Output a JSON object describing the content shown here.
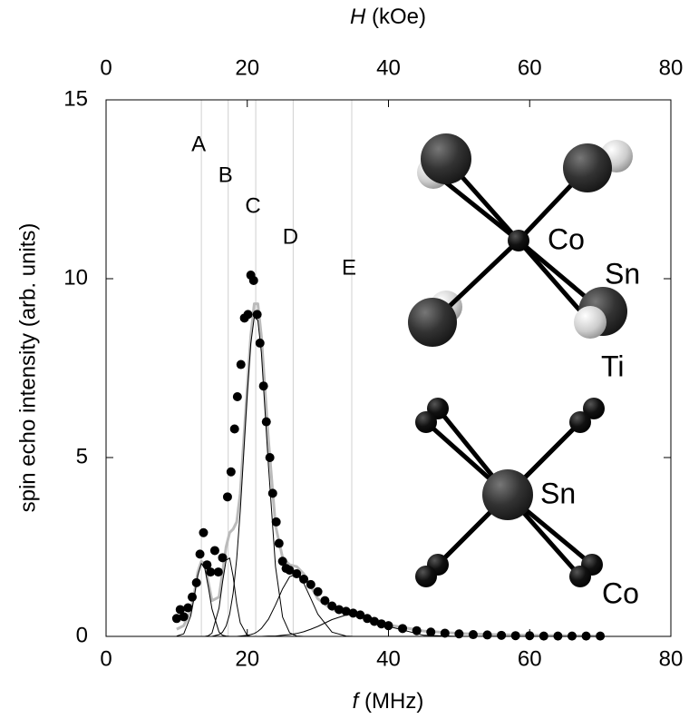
{
  "chart_data": {
    "type": "scatter",
    "xlabel_symbol": "f",
    "xlabel_unit": "(MHz)",
    "x2label_symbol": "H",
    "x2label_unit": "(kOe)",
    "ylabel": "spin echo intensity (arb. units)",
    "xlim": [
      0,
      80
    ],
    "xticks": [
      0,
      20,
      40,
      60,
      80
    ],
    "x2lim": [
      0,
      80
    ],
    "x2ticks": [
      0,
      20,
      40,
      60,
      80
    ],
    "ylim": [
      0,
      15
    ],
    "yticks": [
      0,
      5,
      10,
      15
    ],
    "color": "#000000",
    "x": [
      10.0,
      10.5,
      11.0,
      11.6,
      12.2,
      12.8,
      13.3,
      13.8,
      14.3,
      14.8,
      15.4,
      15.9,
      16.5,
      17.2,
      17.7,
      18.2,
      18.6,
      19.1,
      19.6,
      20.1,
      20.5,
      20.9,
      21.4,
      21.8,
      22.3,
      22.7,
      23.2,
      23.6,
      24.1,
      24.5,
      25.0,
      25.5,
      26,
      27,
      28,
      29,
      30,
      31,
      32,
      33,
      34,
      35,
      36,
      37,
      38,
      39,
      40,
      42,
      44,
      46,
      48,
      50,
      52,
      54,
      56,
      58,
      60,
      62,
      64,
      66,
      68,
      70
    ],
    "values": [
      0.5,
      0.75,
      0.55,
      0.8,
      1.1,
      1.5,
      2.3,
      2.9,
      2.0,
      1.8,
      2.4,
      1.8,
      2.2,
      3.9,
      4.6,
      5.8,
      6.7,
      7.6,
      8.9,
      9.0,
      10.1,
      9.95,
      9.0,
      8.2,
      7.0,
      6.0,
      5.0,
      4.0,
      3.2,
      2.6,
      2.1,
      1.9,
      1.85,
      1.75,
      1.6,
      1.45,
      1.25,
      1.0,
      0.85,
      0.75,
      0.7,
      0.65,
      0.6,
      0.5,
      0.42,
      0.35,
      0.3,
      0.22,
      0.16,
      0.12,
      0.09,
      0.07,
      0.05,
      0.04,
      0.03,
      0.02,
      0.02,
      0.01,
      0.01,
      0.01,
      0.01,
      0.01
    ],
    "fits": {
      "x": [
        10,
        11,
        12,
        12.5,
        13,
        13.5,
        14,
        14.5,
        15,
        16,
        16.5,
        17,
        17.5,
        18,
        18.5,
        19,
        20,
        20.5,
        21,
        21.5,
        22,
        23,
        24,
        25,
        26,
        27,
        28,
        29,
        30,
        32,
        34,
        35,
        36,
        38,
        40,
        45,
        50,
        55,
        60,
        65,
        70
      ],
      "components": [
        {
          "color": "#000000",
          "values": [
            0.01,
            0.07,
            0.57,
            1.12,
            1.71,
            2.04,
            1.89,
            1.37,
            0.77,
            0.12,
            0.03,
            0.01,
            0,
            0,
            0,
            0,
            0,
            0,
            0,
            0,
            0,
            0,
            0,
            0,
            0,
            0,
            0,
            0,
            0,
            0,
            0,
            0,
            0,
            0,
            0,
            0,
            0,
            0,
            0,
            0,
            0
          ]
        },
        {
          "color": "#000000",
          "values": [
            0,
            0,
            0,
            0,
            0,
            0,
            0,
            0.02,
            0.09,
            0.79,
            1.52,
            2.13,
            2.19,
            1.67,
            0.92,
            0.38,
            0.02,
            0,
            0,
            0,
            0,
            0,
            0,
            0,
            0,
            0,
            0,
            0,
            0,
            0,
            0,
            0,
            0,
            0,
            0,
            0,
            0,
            0,
            0,
            0,
            0
          ]
        },
        {
          "color": "#000000",
          "values": [
            0,
            0,
            0,
            0,
            0,
            0,
            0,
            0,
            0,
            0.05,
            0.12,
            0.29,
            0.62,
            1.22,
            2.17,
            3.5,
            6.8,
            8.18,
            8.93,
            8.84,
            7.94,
            4.78,
            1.95,
            0.54,
            0.1,
            0.01,
            0,
            0,
            0,
            0,
            0,
            0,
            0,
            0,
            0,
            0,
            0,
            0,
            0,
            0,
            0
          ]
        },
        {
          "color": "#000000",
          "values": [
            0,
            0,
            0,
            0,
            0,
            0,
            0,
            0,
            0,
            0,
            0,
            0,
            0,
            0,
            0,
            0.01,
            0.03,
            0.05,
            0.08,
            0.14,
            0.22,
            0.48,
            0.88,
            1.33,
            1.67,
            1.74,
            1.49,
            1.06,
            0.62,
            0.12,
            0.01,
            0,
            0,
            0,
            0,
            0,
            0,
            0,
            0,
            0,
            0
          ]
        },
        {
          "color": "#000000",
          "values": [
            0,
            0,
            0,
            0,
            0,
            0,
            0,
            0,
            0,
            0,
            0,
            0,
            0,
            0,
            0,
            0,
            0,
            0,
            0,
            0,
            0,
            0.01,
            0.01,
            0.03,
            0.05,
            0.08,
            0.13,
            0.2,
            0.28,
            0.47,
            0.6,
            0.62,
            0.6,
            0.47,
            0.28,
            0.03,
            0,
            0,
            0,
            0,
            0
          ]
        }
      ],
      "total": {
        "color": "#bbbbbb",
        "values": [
          0.2,
          0.3,
          0.7,
          1.2,
          1.8,
          2.1,
          2.0,
          1.5,
          1.0,
          1.1,
          1.8,
          2.5,
          2.9,
          3.0,
          3.2,
          4.0,
          7.0,
          8.4,
          9.3,
          9.3,
          8.4,
          5.5,
          3.1,
          2.2,
          2.0,
          1.95,
          1.75,
          1.4,
          1.05,
          0.75,
          0.68,
          0.65,
          0.6,
          0.48,
          0.32,
          0.15,
          0.08,
          0.05,
          0.03,
          0.02,
          0.01
        ]
      }
    },
    "peaks": [
      {
        "label": "A",
        "position": 13.5
      },
      {
        "label": "B",
        "position": 17.3
      },
      {
        "label": "C",
        "position": 21.2
      },
      {
        "label": "D",
        "position": 26.5
      },
      {
        "label": "E",
        "position": 34.8
      }
    ],
    "peak_line_color": "#d0d0d0",
    "inset_labels": [
      "Co",
      "Sn",
      "Ti",
      "Sn",
      "Co"
    ]
  }
}
